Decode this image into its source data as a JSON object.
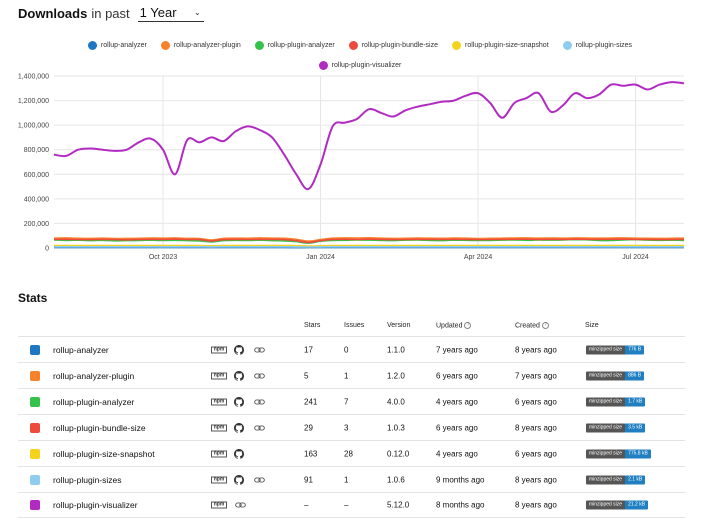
{
  "header": {
    "title": "Downloads",
    "subtitle": "in past",
    "period": "1 Year"
  },
  "colors": {
    "rollup-analyzer": "#1f77c4",
    "rollup-analyzer-plugin": "#f5812a",
    "rollup-plugin-analyzer": "#35c24a",
    "rollup-plugin-bundle-size": "#ee4a3d",
    "rollup-plugin-size-snapshot": "#f4d31c",
    "rollup-plugin-sizes": "#8fcdf0",
    "rollup-plugin-visualizer": "#b12bc2"
  },
  "legend": [
    "rollup-analyzer",
    "rollup-analyzer-plugin",
    "rollup-plugin-analyzer",
    "rollup-plugin-bundle-size",
    "rollup-plugin-size-snapshot",
    "rollup-plugin-sizes",
    "rollup-plugin-visualizer"
  ],
  "chart_data": {
    "type": "line",
    "title": "",
    "xlabel": "",
    "ylabel": "",
    "x_tick_labels": [
      "Oct 2023",
      "Jan 2024",
      "Apr 2024",
      "Jul 2024"
    ],
    "x_tick_weeks": [
      9,
      22,
      35,
      48
    ],
    "y_ticks": [
      0,
      200000,
      400000,
      600000,
      800000,
      1000000,
      1200000,
      1400000
    ],
    "y_tick_labels": [
      "0",
      "200,000",
      "400,000",
      "600,000",
      "800,000",
      "1,000,000",
      "1,200,000",
      "1,400,000"
    ],
    "ylim": [
      0,
      1400000
    ],
    "grid": true,
    "legend_position": "top",
    "x_unit": "week",
    "series": [
      {
        "name": "rollup-analyzer",
        "values": [
          4000,
          4000,
          4000,
          4000,
          4000,
          4000,
          4000,
          4000,
          4000,
          4000,
          4000,
          4000,
          4000,
          4000,
          4000,
          4000,
          4000,
          4000,
          4000,
          4000,
          3000,
          4000,
          4000,
          4000,
          4000,
          4000,
          4000,
          4000,
          4000,
          4000,
          4000,
          4000,
          4000,
          4000,
          4000,
          4000,
          4000,
          4000,
          4000,
          4000,
          4000,
          4000,
          4000,
          4000,
          4000,
          4000,
          4000,
          4000,
          4000,
          4000,
          4000,
          4000,
          4000
        ]
      },
      {
        "name": "rollup-analyzer-plugin",
        "values": [
          80000,
          82000,
          79000,
          78000,
          80000,
          77000,
          78000,
          79000,
          81000,
          80000,
          82000,
          78000,
          77000,
          65000,
          78000,
          80000,
          79000,
          82000,
          80000,
          79000,
          70000,
          55000,
          68000,
          80000,
          82000,
          81000,
          83000,
          80000,
          78000,
          79000,
          81000,
          80000,
          79000,
          81000,
          80000,
          77000,
          79000,
          80000,
          81000,
          82000,
          80000,
          81000,
          80000,
          82000,
          81000,
          80000,
          81000,
          82000,
          80000,
          79000,
          78000,
          79000,
          81000
        ]
      },
      {
        "name": "rollup-plugin-analyzer",
        "values": [
          65000,
          62000,
          64000,
          60000,
          63000,
          59000,
          60000,
          62000,
          64000,
          61000,
          63000,
          60000,
          58000,
          50000,
          60000,
          63000,
          61000,
          64000,
          60000,
          58000,
          52000,
          40000,
          55000,
          62000,
          63000,
          65000,
          64000,
          62000,
          60000,
          64000,
          66000,
          62000,
          60000,
          64000,
          63000,
          61000,
          62000,
          64000,
          66000,
          63000,
          65000,
          64000,
          66000,
          68000,
          67000,
          62000,
          61000,
          66000,
          68000,
          64000,
          63000,
          64000,
          62000
        ]
      },
      {
        "name": "rollup-plugin-bundle-size",
        "values": [
          70000,
          71000,
          69000,
          68000,
          70000,
          68000,
          67000,
          69000,
          71000,
          70000,
          72000,
          69000,
          68000,
          58000,
          68000,
          70000,
          69000,
          71000,
          70000,
          68000,
          60000,
          45000,
          60000,
          70000,
          71000,
          70000,
          72000,
          70000,
          68000,
          69000,
          71000,
          70000,
          69000,
          71000,
          70000,
          68000,
          69000,
          70000,
          71000,
          72000,
          70000,
          71000,
          70000,
          72000,
          71000,
          70000,
          71000,
          72000,
          70000,
          69000,
          68000,
          69000,
          70000
        ]
      },
      {
        "name": "rollup-plugin-size-snapshot",
        "values": [
          20000,
          20000,
          20000,
          20000,
          20000,
          20000,
          20000,
          20000,
          20000,
          20000,
          20000,
          20000,
          20000,
          18000,
          20000,
          20000,
          20000,
          20000,
          20000,
          20000,
          19000,
          16000,
          18000,
          20000,
          20000,
          20000,
          20000,
          20000,
          20000,
          20000,
          20000,
          20000,
          20000,
          20000,
          20000,
          20000,
          20000,
          20000,
          20000,
          20000,
          20000,
          20000,
          20000,
          20000,
          20000,
          20000,
          20000,
          20000,
          20000,
          20000,
          20000,
          20000,
          20000
        ]
      },
      {
        "name": "rollup-plugin-sizes",
        "values": [
          10000,
          10000,
          10000,
          10000,
          10000,
          10000,
          10000,
          10000,
          10000,
          10000,
          10000,
          10000,
          10000,
          9000,
          10000,
          10000,
          10000,
          10000,
          10000,
          10000,
          9000,
          8000,
          9000,
          10000,
          10000,
          10000,
          10000,
          10000,
          10000,
          10000,
          10000,
          10000,
          10000,
          10000,
          10000,
          10000,
          10000,
          10000,
          10000,
          10000,
          10000,
          10000,
          10000,
          10000,
          10000,
          10000,
          10000,
          10000,
          10000,
          10000,
          10000,
          10000,
          10000
        ]
      },
      {
        "name": "rollup-plugin-visualizer",
        "values": [
          760000,
          750000,
          800000,
          810000,
          800000,
          790000,
          800000,
          860000,
          890000,
          800000,
          600000,
          880000,
          860000,
          900000,
          870000,
          950000,
          990000,
          960000,
          900000,
          760000,
          600000,
          480000,
          680000,
          990000,
          1020000,
          1050000,
          1130000,
          1100000,
          1070000,
          1120000,
          1150000,
          1170000,
          1190000,
          1200000,
          1240000,
          1260000,
          1180000,
          1060000,
          1180000,
          1220000,
          1260000,
          1110000,
          1160000,
          1260000,
          1220000,
          1250000,
          1330000,
          1320000,
          1330000,
          1290000,
          1330000,
          1350000,
          1340000
        ]
      }
    ]
  },
  "stats": {
    "title": "Stats",
    "columns": {
      "stars": "Stars",
      "issues": "Issues",
      "version": "Version",
      "updated": "Updated",
      "created": "Created",
      "size": "Size"
    },
    "npm_label": "npm",
    "badge_key": "minzipped size",
    "rows": [
      {
        "name": "rollup-analyzer",
        "stars": "17",
        "issues": "0",
        "version": "1.1.0",
        "updated": "7 years ago",
        "created": "8 years ago",
        "size": "776 B",
        "has_github": true,
        "has_link": true
      },
      {
        "name": "rollup-analyzer-plugin",
        "stars": "5",
        "issues": "1",
        "version": "1.2.0",
        "updated": "6 years ago",
        "created": "7 years ago",
        "size": "886 B",
        "has_github": true,
        "has_link": true
      },
      {
        "name": "rollup-plugin-analyzer",
        "stars": "241",
        "issues": "7",
        "version": "4.0.0",
        "updated": "4 years ago",
        "created": "6 years ago",
        "size": "1.7 kB",
        "has_github": true,
        "has_link": true
      },
      {
        "name": "rollup-plugin-bundle-size",
        "stars": "29",
        "issues": "3",
        "version": "1.0.3",
        "updated": "6 years ago",
        "created": "8 years ago",
        "size": "3.5 kB",
        "has_github": true,
        "has_link": true
      },
      {
        "name": "rollup-plugin-size-snapshot",
        "stars": "163",
        "issues": "28",
        "version": "0.12.0",
        "updated": "4 years ago",
        "created": "6 years ago",
        "size": "775.8 kB",
        "has_github": true,
        "has_link": false
      },
      {
        "name": "rollup-plugin-sizes",
        "stars": "91",
        "issues": "1",
        "version": "1.0.6",
        "updated": "9 months ago",
        "created": "8 years ago",
        "size": "2.1 kB",
        "has_github": true,
        "has_link": true
      },
      {
        "name": "rollup-plugin-visualizer",
        "stars": "–",
        "issues": "–",
        "version": "5.12.0",
        "updated": "8 months ago",
        "created": "8 years ago",
        "size": "21.2 kB",
        "has_github": false,
        "has_link": true
      }
    ]
  }
}
